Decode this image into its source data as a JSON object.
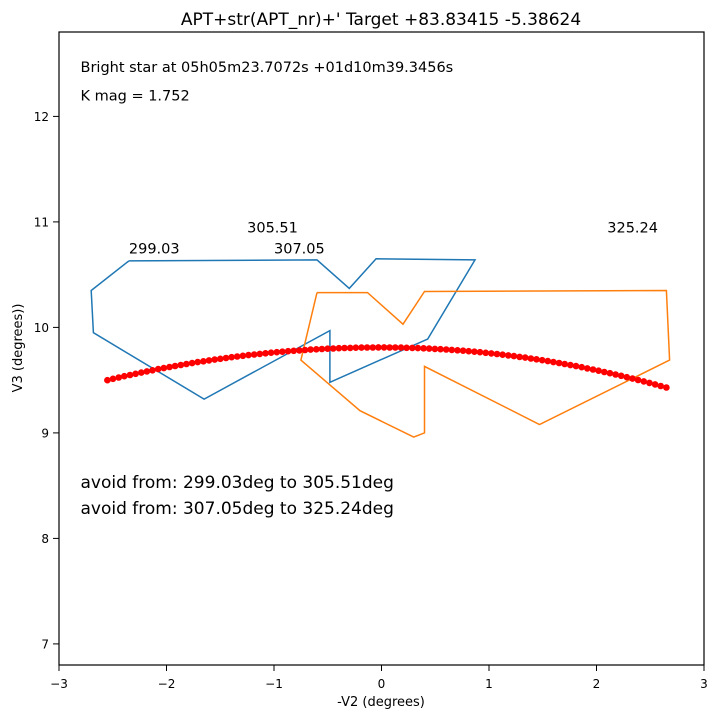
{
  "chart_data": {
    "type": "line",
    "title": "APT+str(APT_nr)+' Target +83.83415  -5.38624",
    "xlabel": "-V2 (degrees)",
    "ylabel": "V3 (degrees))",
    "xlim": [
      -3,
      3
    ],
    "ylim": [
      6.8,
      12.8
    ],
    "x_ticks": [
      -3,
      -2,
      -1,
      0,
      1,
      2,
      3
    ],
    "y_ticks": [
      7,
      8,
      9,
      10,
      11,
      12
    ],
    "grid": false,
    "annotations": [
      {
        "text": "Bright star at   05h05m23.7072s +01d10m39.3456s",
        "x": -2.8,
        "y": 12.42
      },
      {
        "text": "K mag = 1.752",
        "x": -2.8,
        "y": 12.15
      },
      {
        "text": "299.03",
        "x": -2.35,
        "y": 10.7
      },
      {
        "text": "305.51",
        "x": -1.25,
        "y": 10.9
      },
      {
        "text": "307.05",
        "x": -1.0,
        "y": 10.7
      },
      {
        "text": "325.24",
        "x": 2.1,
        "y": 10.9
      },
      {
        "text": "avoid from: 299.03deg to 305.51deg",
        "x": -2.8,
        "y": 8.48,
        "size": "large"
      },
      {
        "text": "avoid from: 307.05deg to 325.24deg",
        "x": -2.8,
        "y": 8.23,
        "size": "large"
      }
    ],
    "series": [
      {
        "kind": "line",
        "color": "#1f77b4",
        "points": [
          [
            -2.35,
            10.63
          ],
          [
            -0.6,
            10.64
          ],
          [
            -0.3,
            10.37
          ],
          [
            -0.05,
            10.65
          ],
          [
            0.87,
            10.64
          ],
          [
            0.43,
            9.89
          ],
          [
            -0.48,
            9.48
          ],
          [
            -0.48,
            9.97
          ],
          [
            -1.65,
            9.32
          ],
          [
            -2.68,
            9.95
          ],
          [
            -2.7,
            10.35
          ],
          [
            -2.35,
            10.63
          ]
        ]
      },
      {
        "kind": "line",
        "color": "#ff7f0e",
        "points": [
          [
            -0.6,
            10.33
          ],
          [
            -0.13,
            10.33
          ],
          [
            0.2,
            10.03
          ],
          [
            0.4,
            10.34
          ],
          [
            2.65,
            10.35
          ],
          [
            2.68,
            9.69
          ],
          [
            1.47,
            9.08
          ],
          [
            0.4,
            9.63
          ],
          [
            0.4,
            9.0
          ],
          [
            0.3,
            8.96
          ],
          [
            -0.2,
            9.21
          ],
          [
            -0.75,
            9.69
          ],
          [
            -0.6,
            10.33
          ]
        ]
      },
      {
        "kind": "scatter",
        "color": "#ff0000",
        "curve": {
          "x_start": -2.55,
          "x_end": 2.65,
          "count": 100,
          "peak_x": 0.0,
          "peak_y": 9.81,
          "y_left": 9.5,
          "y_right": 9.43
        }
      }
    ]
  }
}
